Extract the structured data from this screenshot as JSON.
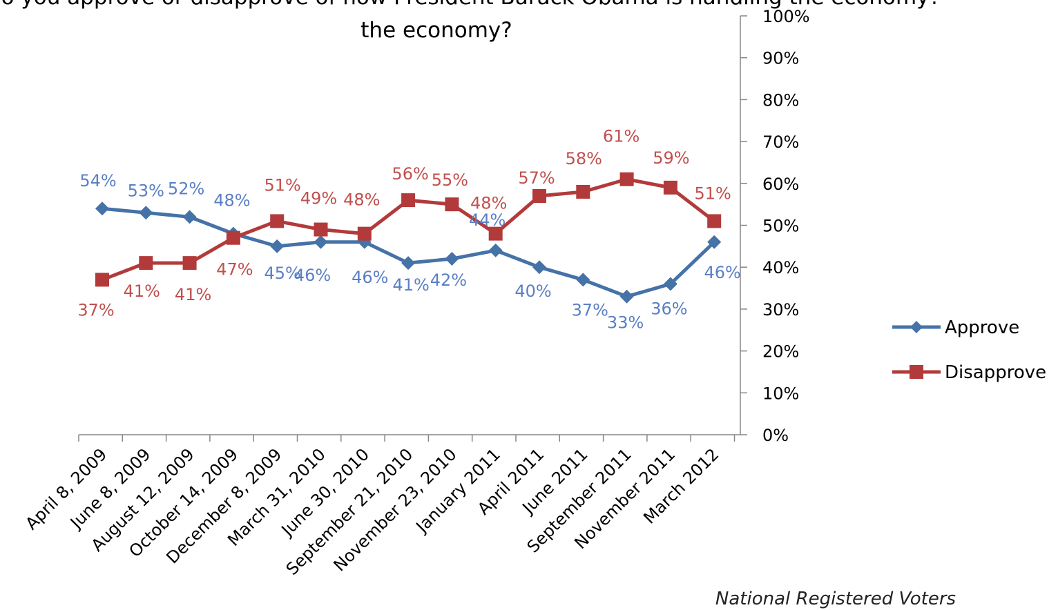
{
  "chart_data": {
    "type": "line",
    "title": "tion: Do you approve or disapprove of how President Barack Obama is handling the economy?",
    "title_line2": "the economy?",
    "categories": [
      "April 8, 2009",
      "June 8, 2009",
      "August 12, 2009",
      "October 14, 2009",
      "December 8, 2009",
      "March 31, 2010",
      "June 30, 2010",
      "September 21, 2010",
      "November 23, 2010",
      "January 2011",
      "April 2011",
      "June 2011",
      "September 2011",
      "November 2011",
      "March 2012"
    ],
    "series": [
      {
        "name": "Approve",
        "color": "#4572A7",
        "label_color": "#5b7fc4",
        "marker": "diamond",
        "values": [
          54,
          53,
          52,
          48,
          45,
          46,
          46,
          41,
          42,
          44,
          40,
          37,
          33,
          36,
          46
        ],
        "labels": [
          "54%",
          "53%",
          "52%",
          "48%",
          "45%",
          "46%",
          "46%",
          "41%",
          "42%",
          "44%",
          "40%",
          "37%",
          "33%",
          "36%",
          "46%"
        ]
      },
      {
        "name": "Disapprove",
        "color": "#B33A3A",
        "label_color": "#c0504d",
        "marker": "square",
        "values": [
          37,
          41,
          41,
          47,
          51,
          49,
          48,
          56,
          55,
          48,
          57,
          58,
          61,
          59,
          51
        ],
        "labels": [
          "37%",
          "41%",
          "41%",
          "47%",
          "51%",
          "49%",
          "48%",
          "56%",
          "55%",
          "48%",
          "57%",
          "58%",
          "61%",
          "59%",
          "51%"
        ]
      }
    ],
    "y_axis": {
      "position": "right",
      "ylim": [
        0,
        100
      ],
      "ticks": [
        0,
        10,
        20,
        30,
        40,
        50,
        60,
        70,
        80,
        90,
        100
      ],
      "tick_labels": [
        "0%",
        "10%",
        "20%",
        "30%",
        "40%",
        "50%",
        "60%",
        "70%",
        "80%",
        "90%",
        "100%"
      ]
    },
    "xlabel": "",
    "ylabel": "",
    "grid": false,
    "legend_position": "right",
    "footnote": "National Registered Voters"
  }
}
